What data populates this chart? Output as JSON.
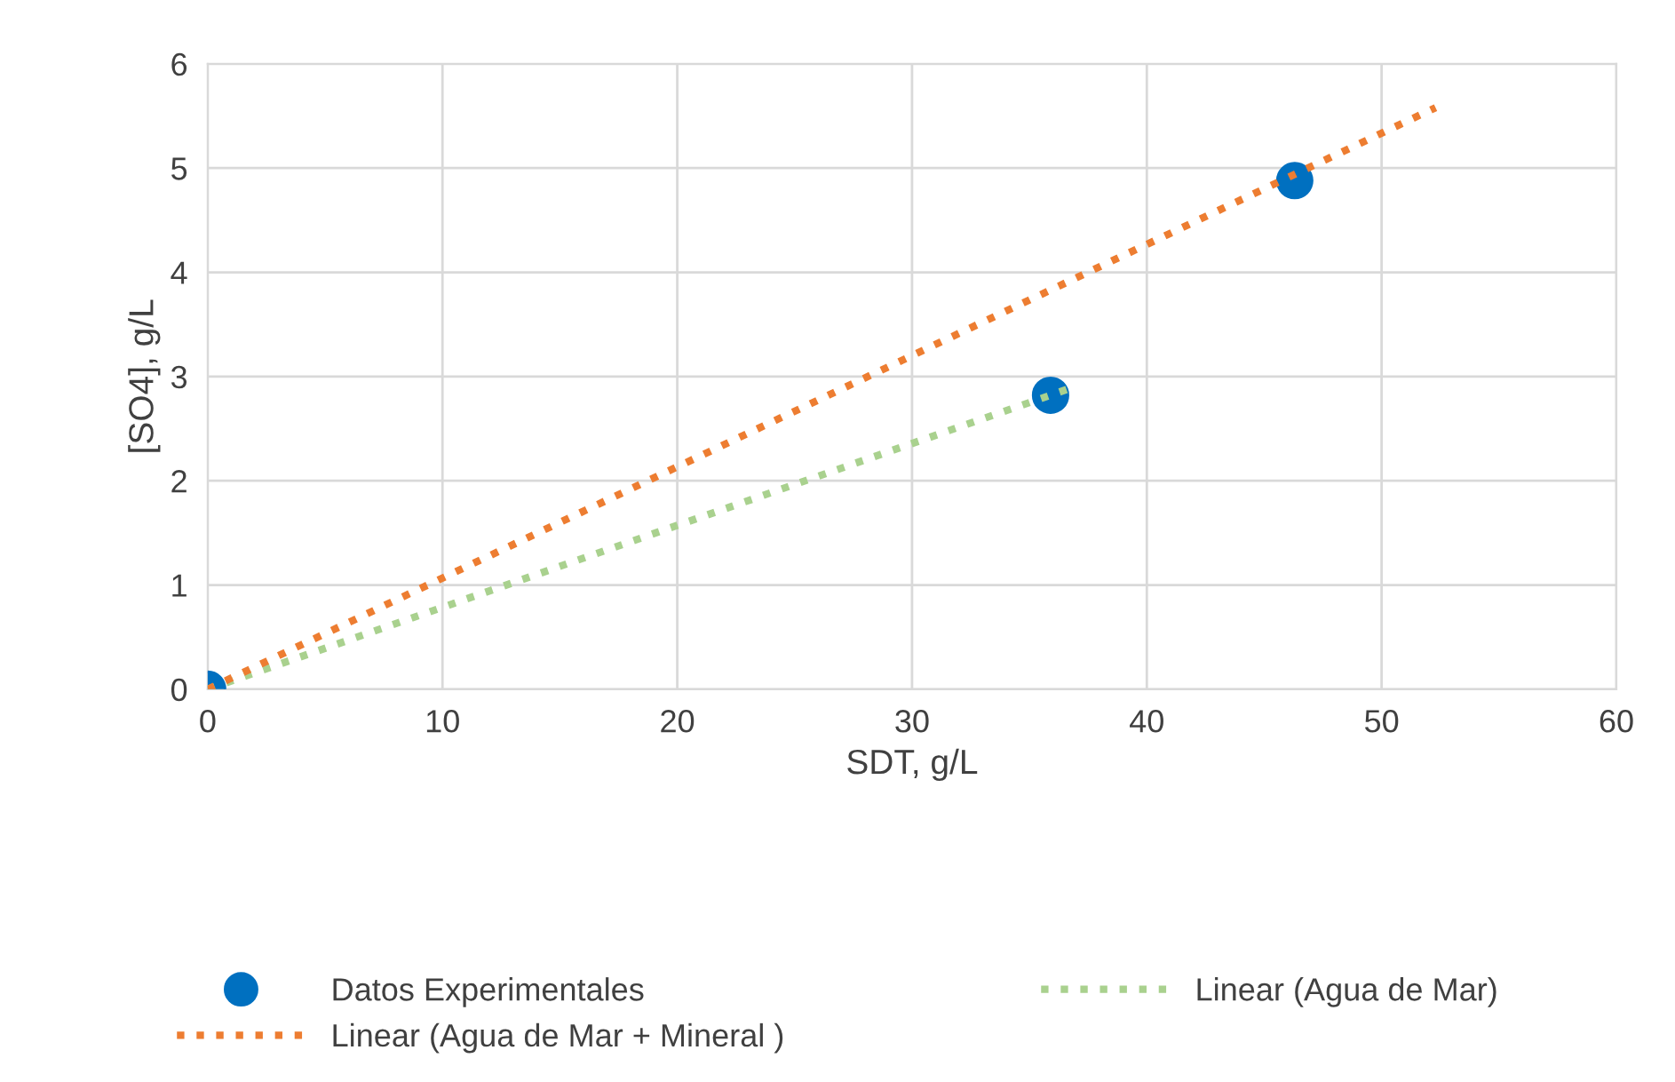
{
  "chart_data": {
    "type": "scatter",
    "xlabel": "SDT, g/L",
    "ylabel": "[SO4], g/L",
    "xlim": [
      0,
      60
    ],
    "xticks": [
      0,
      10,
      20,
      30,
      40,
      50,
      60
    ],
    "ylim": [
      0,
      6
    ],
    "yticks": [
      0,
      1,
      2,
      3,
      4,
      5,
      6
    ],
    "grid": true,
    "legend": "bottom",
    "series": [
      {
        "name": "Datos Experimentales",
        "marker": "circle",
        "color": "#0070c0",
        "x": [
          0,
          35.9,
          46.3
        ],
        "values": [
          0,
          2.82,
          4.88
        ]
      },
      {
        "name": "Linear (Agua de Mar)",
        "type": "line",
        "marker": "none",
        "line_style": "dotted",
        "color": "#a9d18e",
        "x": [
          0,
          36.9
        ],
        "values": [
          0,
          2.9
        ]
      },
      {
        "name": "Linear (Agua de Mar + Mineral )",
        "type": "line",
        "marker": "none",
        "line_style": "dotted",
        "color": "#ed7d31",
        "x": [
          0,
          52.3
        ],
        "values": [
          0,
          5.58
        ]
      }
    ]
  }
}
